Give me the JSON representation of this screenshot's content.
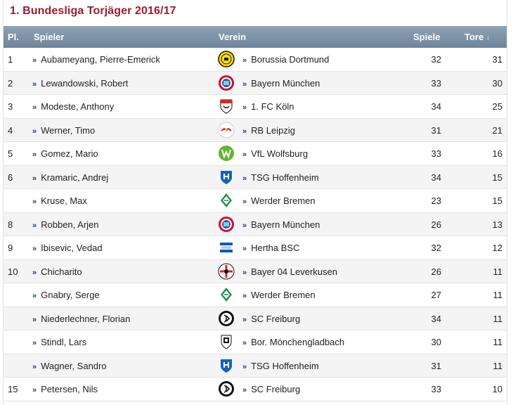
{
  "title": "1. Bundesliga Torjäger 2016/17",
  "columns": {
    "pl": "Pl.",
    "player": "Spieler",
    "club": "Verein",
    "games": "Spiele",
    "goals": "Tore",
    "sort_icon": "↓"
  },
  "chevron": "»",
  "rows": [
    {
      "pl": "1",
      "player": "Aubameyang, Pierre-Emerick",
      "club": "Borussia Dortmund",
      "crest": "bvb",
      "games": "32",
      "goals": "31"
    },
    {
      "pl": "2",
      "player": "Lewandowski, Robert",
      "club": "Bayern München",
      "crest": "fcb",
      "games": "33",
      "goals": "30"
    },
    {
      "pl": "3",
      "player": "Modeste, Anthony",
      "club": "1. FC Köln",
      "crest": "koeln",
      "games": "34",
      "goals": "25"
    },
    {
      "pl": "4",
      "player": "Werner, Timo",
      "club": "RB Leipzig",
      "crest": "rbl",
      "games": "31",
      "goals": "21"
    },
    {
      "pl": "5",
      "player": "Gomez, Mario",
      "club": "VfL Wolfsburg",
      "crest": "wob",
      "games": "33",
      "goals": "16"
    },
    {
      "pl": "6",
      "player": "Kramaric, Andrej",
      "club": "TSG Hoffenheim",
      "crest": "tsg",
      "games": "34",
      "goals": "15"
    },
    {
      "pl": "",
      "player": "Kruse, Max",
      "club": "Werder Bremen",
      "crest": "svw",
      "games": "23",
      "goals": "15"
    },
    {
      "pl": "8",
      "player": "Robben, Arjen",
      "club": "Bayern München",
      "crest": "fcb",
      "games": "26",
      "goals": "13"
    },
    {
      "pl": "9",
      "player": "Ibisevic, Vedad",
      "club": "Hertha BSC",
      "crest": "bsc",
      "games": "32",
      "goals": "12"
    },
    {
      "pl": "10",
      "player": "Chicharito",
      "club": "Bayer 04 Leverkusen",
      "crest": "b04",
      "games": "26",
      "goals": "11"
    },
    {
      "pl": "",
      "player": "Gnabry, Serge",
      "club": "Werder Bremen",
      "crest": "svw",
      "games": "27",
      "goals": "11"
    },
    {
      "pl": "",
      "player": "Niederlechner, Florian",
      "club": "SC Freiburg",
      "crest": "scf",
      "games": "34",
      "goals": "11"
    },
    {
      "pl": "",
      "player": "Stindl, Lars",
      "club": "Bor. Mönchengladbach",
      "crest": "bmg",
      "games": "30",
      "goals": "11"
    },
    {
      "pl": "",
      "player": "Wagner, Sandro",
      "club": "TSG Hoffenheim",
      "crest": "tsg",
      "games": "31",
      "goals": "11"
    },
    {
      "pl": "15",
      "player": "Petersen, Nils",
      "club": "SC Freiburg",
      "crest": "scf",
      "games": "33",
      "goals": "10"
    }
  ],
  "colors": {
    "title": "#9e1b32",
    "header": "#7b8fa4",
    "link": "#1c3d6e"
  }
}
